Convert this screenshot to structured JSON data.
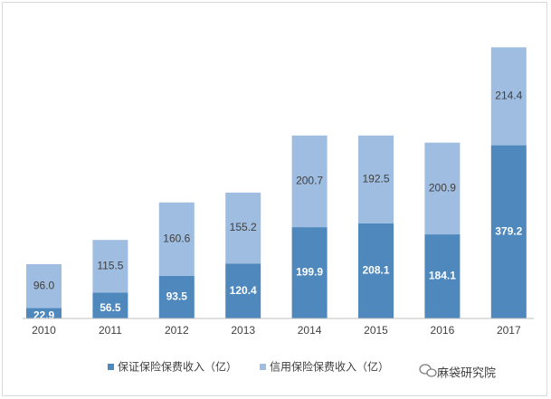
{
  "chart_data": {
    "type": "bar",
    "stacked": true,
    "categories": [
      "2010",
      "2011",
      "2012",
      "2013",
      "2014",
      "2015",
      "2016",
      "2017"
    ],
    "series": [
      {
        "name": "保证保险保费收入（亿）",
        "color": "#4f88bd",
        "label_color": "#ffffff",
        "values": [
          22.9,
          56.5,
          93.5,
          120.4,
          199.9,
          208.1,
          184.1,
          379.2
        ]
      },
      {
        "name": "信用保险保费收入（亿）",
        "color": "#9ebde0",
        "label_color": "#404040",
        "values": [
          96.0,
          115.5,
          160.6,
          155.2,
          200.7,
          192.5,
          200.9,
          214.4
        ]
      }
    ],
    "title": "",
    "xlabel": "",
    "ylabel": "",
    "ylim": [
      0,
      620
    ],
    "grid": false,
    "legend": "bottom"
  },
  "watermark": {
    "text": "麻袋研究院",
    "icon": "wechat-icon"
  }
}
